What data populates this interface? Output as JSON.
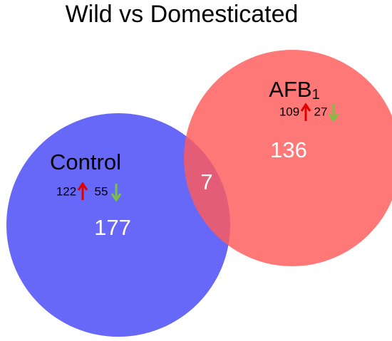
{
  "title": "Wild vs Domesticated",
  "sets": [
    {
      "label": "Control",
      "up": 122,
      "down": 55,
      "total": 177
    },
    {
      "label": "AFB",
      "label_subscript": "1",
      "up": 109,
      "down": 27,
      "total": 136
    }
  ],
  "intersection": 7
}
